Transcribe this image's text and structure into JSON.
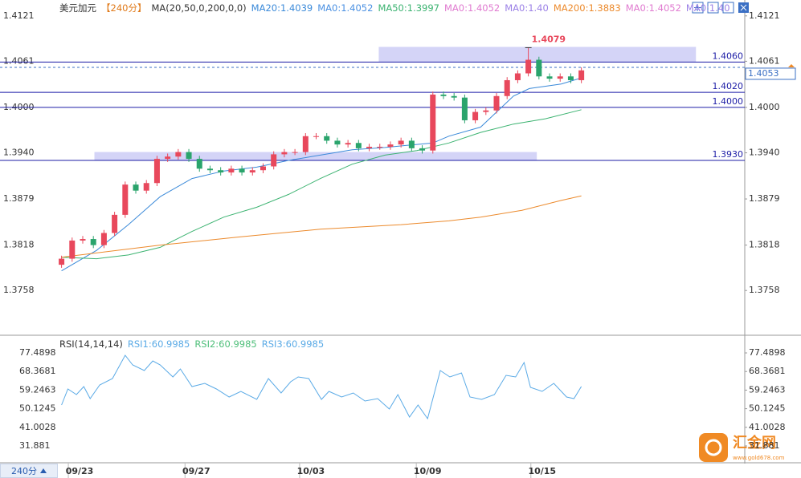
{
  "chart_data": [
    {
      "type": "candlestick",
      "title": "美元加元",
      "period": "【240分】",
      "indicator": "MA(20,50,0,200,0,0)",
      "up_color": "#e8485c",
      "down_color": "#2aa46c",
      "xlim": [
        -5.8,
        64.4
      ],
      "ylim": [
        1.3702,
        1.4142
      ],
      "yticks": [
        1.4121,
        1.4061,
        {
          "value": 1.4,
          "label": "1.4000"
        },
        {
          "value": 1.394,
          "label": "1.3940"
        },
        1.3879,
        1.3818,
        1.3758
      ],
      "open": [
        1.3792,
        1.38,
        1.3824,
        1.3826,
        1.3818,
        1.3834,
        1.3858,
        1.3898,
        1.389,
        1.39,
        1.3932,
        1.3935,
        1.3941,
        1.3932,
        1.3919,
        1.3917,
        1.3914,
        1.3919,
        1.3914,
        1.3917,
        1.3922,
        1.3938,
        1.3941,
        1.3941,
        1.3962,
        1.3962,
        1.3956,
        1.3951,
        1.3953,
        1.3946,
        1.3948,
        1.3948,
        1.3951,
        1.3956,
        1.3946,
        1.3943,
        1.4017,
        1.4015,
        1.4013,
        1.3983,
        1.3994,
        1.3996,
        1.4015,
        1.4036,
        1.4045,
        1.4063,
        1.4041,
        1.4038,
        1.4041,
        1.4036
      ],
      "high": [
        1.3804,
        1.3828,
        1.383,
        1.383,
        1.3838,
        1.3862,
        1.3902,
        1.3902,
        1.3904,
        1.3936,
        1.3939,
        1.3945,
        1.3945,
        1.3936,
        1.3923,
        1.3921,
        1.3923,
        1.3923,
        1.3921,
        1.3926,
        1.3942,
        1.3945,
        1.3945,
        1.3966,
        1.3966,
        1.3966,
        1.396,
        1.3957,
        1.3957,
        1.3952,
        1.3952,
        1.3955,
        1.396,
        1.396,
        1.395,
        1.4021,
        1.4021,
        1.4019,
        1.4017,
        1.3998,
        1.4,
        1.4019,
        1.404,
        1.4049,
        1.4079,
        1.4067,
        1.4045,
        1.4045,
        1.4045,
        1.4053
      ],
      "low": [
        1.3788,
        1.3796,
        1.382,
        1.3814,
        1.3814,
        1.383,
        1.3854,
        1.3886,
        1.3886,
        1.3896,
        1.3928,
        1.3931,
        1.3928,
        1.3915,
        1.3913,
        1.391,
        1.391,
        1.391,
        1.391,
        1.3913,
        1.3918,
        1.3934,
        1.3937,
        1.3937,
        1.3958,
        1.3952,
        1.3947,
        1.3947,
        1.3942,
        1.3942,
        1.3944,
        1.3944,
        1.3947,
        1.3942,
        1.3939,
        1.3939,
        1.4011,
        1.4009,
        1.3979,
        1.3979,
        1.399,
        1.3992,
        1.4011,
        1.4032,
        1.4041,
        1.4037,
        1.4034,
        1.4034,
        1.4032,
        1.4032
      ],
      "close": [
        1.38,
        1.3824,
        1.3826,
        1.3818,
        1.3834,
        1.3858,
        1.3898,
        1.389,
        1.39,
        1.3932,
        1.3935,
        1.3941,
        1.3932,
        1.3919,
        1.3917,
        1.3914,
        1.3919,
        1.3914,
        1.3917,
        1.3922,
        1.3938,
        1.3941,
        1.3941,
        1.3962,
        1.3962,
        1.3956,
        1.3951,
        1.3953,
        1.3946,
        1.3948,
        1.3948,
        1.3951,
        1.3956,
        1.3946,
        1.3943,
        1.4017,
        1.4015,
        1.4013,
        1.3983,
        1.3994,
        1.3996,
        1.4015,
        1.4036,
        1.4045,
        1.4063,
        1.4041,
        1.4038,
        1.4041,
        1.4036,
        1.4049
      ],
      "series": [
        {
          "name": "MA20:1.4039",
          "color": "#3b8ad9",
          "x": [
            0,
            3.3,
            6.3,
            9.3,
            12.3,
            15.3,
            18.4,
            21.4,
            24.4,
            27.4,
            30.5,
            33.5,
            35,
            36.5,
            39.5,
            42.6,
            44.1,
            47.1,
            49
          ],
          "values": [
            1.3784,
            1.3811,
            1.3845,
            1.3882,
            1.3906,
            1.3916,
            1.3921,
            1.393,
            1.3937,
            1.3944,
            1.3947,
            1.3951,
            1.3953,
            1.3962,
            1.3974,
            1.4015,
            1.4025,
            1.4031,
            1.4039
          ]
        },
        {
          "name": "MA50:1.3997",
          "color": "#3cb371",
          "x": [
            0,
            3.3,
            6.3,
            9.3,
            12.3,
            15.3,
            18.4,
            21.4,
            24.4,
            27.4,
            30.5,
            33.5,
            36.5,
            39.5,
            42.6,
            45.6,
            49
          ],
          "values": [
            1.3802,
            1.38,
            1.3805,
            1.3815,
            1.3836,
            1.3855,
            1.3868,
            1.3885,
            1.3906,
            1.3925,
            1.3937,
            1.3943,
            1.3953,
            1.3967,
            1.3978,
            1.3985,
            1.3997
          ]
        },
        {
          "name": "MA200:1.3883",
          "color": "#ec8a2c",
          "x": [
            0,
            9.3,
            16.9,
            24.4,
            32,
            36.5,
            39.5,
            43.4,
            47.1,
            49
          ],
          "values": [
            1.3802,
            1.3818,
            1.3829,
            1.3839,
            1.3845,
            1.385,
            1.3855,
            1.3864,
            1.3877,
            1.3883
          ]
        }
      ],
      "extra_labels": [
        {
          "label": "MA0:1.4052",
          "color": "#4a90e2",
          "after": 1
        },
        {
          "label": "MA0:1.4052",
          "color": "#e07ad0",
          "after": 2
        },
        {
          "label": "MA0:1.40",
          "color": "#9b80e6",
          "after": 2
        }
      ],
      "levels": [
        {
          "value": 1.406,
          "label": "1.4060"
        },
        {
          "value": 1.402,
          "label": "1.4020"
        },
        {
          "value": 1.4,
          "label": "1.4000"
        },
        {
          "value": 1.393,
          "label": "1.3930"
        }
      ],
      "level_color": "#1c1ca6",
      "current_price": 1.4053,
      "zones": [
        {
          "x": [
            29.9,
            59.8
          ],
          "y": [
            1.406,
            1.408
          ]
        },
        {
          "x": [
            3.1,
            44.8
          ],
          "y": [
            1.393,
            1.3941
          ]
        }
      ],
      "zone_color": "#c9c9f5",
      "peak": {
        "x": 44,
        "value": 1.4079,
        "color": "#e8485c"
      }
    },
    {
      "type": "line",
      "title": "RSI(14,14,14)",
      "xlim": [
        -5.8,
        64.4
      ],
      "ylim": [
        24.4,
        83.4
      ],
      "yticks": [
        77.4898,
        68.3681,
        59.2463,
        50.1245,
        41.0028,
        31.881
      ],
      "xticks": [
        {
          "value": 1.7,
          "label": "09/23"
        },
        {
          "value": 12.7,
          "label": "09/27"
        },
        {
          "value": 23.5,
          "label": "10/03"
        },
        {
          "value": 34.5,
          "label": "10/09"
        },
        {
          "value": 45.3,
          "label": "10/15"
        }
      ],
      "series": [
        {
          "name": "RSI1:60.9985",
          "color": "#5aaae6",
          "x": [
            0,
            0.6,
            1.4,
            2.1,
            2.7,
            3.6,
            4.8,
            6.0,
            6.7,
            7.8,
            8.6,
            9.3,
            10.5,
            11.2,
            12.3,
            13.5,
            14.6,
            15.8,
            16.9,
            18.4,
            19.5,
            20.7,
            21.6,
            22.3,
            23.3,
            24.5,
            25.2,
            26.4,
            27.5,
            28.6,
            29.8,
            30.9,
            31.7,
            32.8,
            33.6,
            34.5,
            35.7,
            36.6,
            37.7,
            38.5,
            39.6,
            40.8,
            41.9,
            42.8,
            43.6,
            44.2,
            45.3,
            46.4,
            47.6,
            48.3,
            49
          ],
          "values": [
            51.93,
            59.79,
            57.04,
            60.97,
            55.07,
            61.76,
            64.91,
            76.31,
            71.59,
            68.84,
            73.56,
            71.59,
            65.69,
            69.62,
            60.97,
            62.55,
            59.79,
            55.86,
            58.61,
            54.68,
            64.91,
            57.83,
            63.33,
            65.69,
            64.91,
            54.68,
            58.61,
            55.86,
            57.83,
            53.9,
            55.07,
            49.96,
            57.04,
            46.03,
            51.93,
            45.24,
            68.84,
            65.69,
            67.66,
            55.86,
            54.68,
            57.04,
            66.48,
            65.69,
            72.77,
            60.58,
            58.61,
            62.55,
            55.86,
            55.07,
            61.0
          ]
        }
      ],
      "extra_labels": [
        {
          "label": "RSI2:60.9985",
          "color": "#4fbf7a"
        },
        {
          "label": "RSI3:60.9985",
          "color": "#5aaae6"
        }
      ]
    }
  ],
  "footer": {
    "period_button": "240分"
  },
  "watermark": {
    "name": "汇金网",
    "url": "www.gold678.com"
  }
}
